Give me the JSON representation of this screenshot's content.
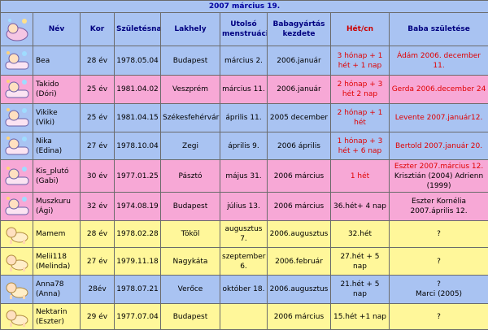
{
  "title": "2007 március 19.",
  "headers": {
    "nev": "Név",
    "kor": "Kor",
    "szuletesnap": "Születésnap",
    "lakhely": "Lakhely",
    "utolso": "Utolsó menstruáció",
    "babagyartas": "Babagyártás kezdete",
    "het": "Hét/cn",
    "baba": "Baba születése"
  },
  "colors": {
    "blue": "#a9c3f2",
    "pink": "#f7a8d6",
    "yellow": "#fff79a",
    "red": "#e00000"
  },
  "rows": [
    {
      "icon": "baby-bathtub-icon",
      "nev": "Bea",
      "kor": "28 év",
      "szuletesnap": "1978.05.04",
      "lakhely": "Budapest",
      "utolso": "március 2.",
      "kezdete": "2006.január",
      "het": "3 hónap + 1 hét + 1 nap",
      "baba": "Ádám 2006. december 11.",
      "baba_sub": ""
    },
    {
      "icon": "baby-bathtub-icon",
      "nev": "Takido (Dóri)",
      "kor": "25 év",
      "szuletesnap": "1981.04.02",
      "lakhely": "Veszprém",
      "utolso": "március 11.",
      "kezdete": "2006.január",
      "het": "2 hónap + 3 hét 2 nap",
      "baba": "Gerda 2006.december 24",
      "baba_sub": ""
    },
    {
      "icon": "baby-bathtub-icon",
      "nev": "Vikike (Viki)",
      "kor": "25 év",
      "szuletesnap": "1981.04.15",
      "lakhely": "Székesfehérvár",
      "utolso": "április 11.",
      "kezdete": "2005 december",
      "het": "2 hónap + 1 hét",
      "baba": "Levente 2007.január12.",
      "baba_sub": ""
    },
    {
      "icon": "baby-bathtub-icon",
      "nev": "Nika (Edina)",
      "kor": "27 év",
      "szuletesnap": "1978.10.04",
      "lakhely": "Zegi",
      "utolso": "április 9.",
      "kezdete": "2006 április",
      "het": "1 hónap + 3 hét + 6 nap",
      "baba": "Bertold 2007.január 20.",
      "baba_sub": ""
    },
    {
      "icon": "baby-bathtub-icon",
      "nev": "Kis_plutó (Gabi)",
      "kor": "30 év",
      "szuletesnap": "1977.01.25",
      "lakhely": "Pásztó",
      "utolso": "május 31.",
      "kezdete": "2006 március",
      "het": "1 hét",
      "baba": "Eszter 2007.március 12.",
      "baba_sub": "Krisztián (2004) Adrienn (1999)"
    },
    {
      "icon": "baby-bathtub-icon",
      "nev": "Muszkuru (Ági)",
      "kor": "32 év",
      "szuletesnap": "1974.08.19",
      "lakhely": "Budapest",
      "utolso": "július 13.",
      "kezdete": "2006 március",
      "het": "36.hét+ 4 nap",
      "baba": "Eszter Kornélia 2007.április 12.",
      "baba_sub": ""
    },
    {
      "icon": "baby-crawling-icon",
      "nev": "Mamem",
      "kor": "28 év",
      "szuletesnap": "1978.02.28",
      "lakhely": "Tököl",
      "utolso": "augusztus 7.",
      "kezdete": "2006.augusztus",
      "het": "32.hét",
      "baba": "?",
      "baba_sub": ""
    },
    {
      "icon": "baby-crawling-icon",
      "nev": "Melii118 (Melinda)",
      "kor": "27 év",
      "szuletesnap": "1979.11.18",
      "lakhely": "Nagykáta",
      "utolso": "szeptember 6.",
      "kezdete": "2006.február",
      "het": "27.hét + 5 nap",
      "baba": "?",
      "baba_sub": ""
    },
    {
      "icon": "baby-crawling-icon",
      "nev": "Anna78 (Anna)",
      "kor": "28év",
      "szuletesnap": "1978.07.21",
      "lakhely": "Verőce",
      "utolso": "október 18.",
      "kezdete": "2006.augusztus",
      "het": "21.hét + 5 nap",
      "baba": "?",
      "baba_sub": "Marci (2005)"
    },
    {
      "icon": "baby-crawling-icon",
      "nev": "Nektarin (Eszter)",
      "kor": "29 év",
      "szuletesnap": "1977.07.04",
      "lakhely": "Budapest",
      "utolso": "",
      "kezdete": "2006 március",
      "het": "15.hét +1 nap",
      "baba": "?",
      "baba_sub": ""
    }
  ]
}
